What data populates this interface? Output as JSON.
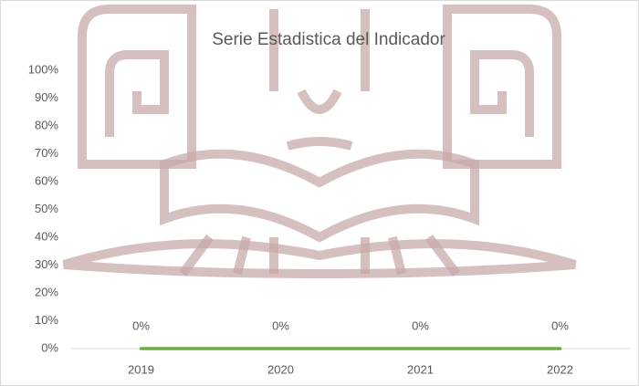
{
  "chart_data": {
    "type": "line",
    "title": "Serie Estadistica del Indicador",
    "categories": [
      "2019",
      "2020",
      "2021",
      "2022"
    ],
    "series": [
      {
        "color": "#70ad47",
        "values": [
          0,
          0,
          0,
          0
        ],
        "value_labels": [
          "0%",
          "0%",
          "0%",
          "0%"
        ]
      }
    ],
    "ylim": [
      0,
      100
    ],
    "yticks": [
      {
        "value": 0,
        "label": "0%"
      },
      {
        "value": 10,
        "label": "10%"
      },
      {
        "value": 20,
        "label": "20%"
      },
      {
        "value": 30,
        "label": "30%"
      },
      {
        "value": 40,
        "label": "40%"
      },
      {
        "value": 50,
        "label": "50%"
      },
      {
        "value": 60,
        "label": "60%"
      },
      {
        "value": 70,
        "label": "70%"
      },
      {
        "value": 80,
        "label": "80%"
      },
      {
        "value": 90,
        "label": "90%"
      },
      {
        "value": 100,
        "label": "100%"
      }
    ],
    "grid": false
  }
}
